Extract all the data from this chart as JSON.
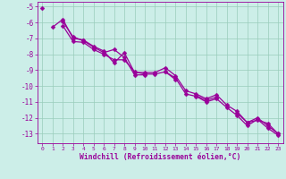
{
  "xlabel": "Windchill (Refroidissement éolien,°C)",
  "bg_color": "#cceee8",
  "line_color": "#990099",
  "grid_color": "#99ccbb",
  "xlim": [
    -0.5,
    23.5
  ],
  "ylim": [
    -13.6,
    -4.7
  ],
  "yticks": [
    -5,
    -6,
    -7,
    -8,
    -9,
    -10,
    -11,
    -12,
    -13
  ],
  "xticks": [
    0,
    1,
    2,
    3,
    4,
    5,
    6,
    7,
    8,
    9,
    10,
    11,
    12,
    13,
    14,
    15,
    16,
    17,
    18,
    19,
    20,
    21,
    22,
    23
  ],
  "series": [
    [
      -5.1,
      null,
      -5.95,
      -6.9,
      -7.15,
      -7.55,
      -7.9,
      -7.7,
      -8.2,
      -9.3,
      -9.3,
      null,
      -9.1,
      -9.6,
      null,
      -10.6,
      -10.9,
      -10.7,
      null,
      -11.7,
      -12.3,
      -12.0,
      -12.5,
      -13.0
    ],
    [
      null,
      -6.3,
      -5.8,
      -7.0,
      -7.1,
      -7.5,
      -7.8,
      -8.55,
      -7.9,
      -9.15,
      -9.15,
      -9.15,
      -8.85,
      -9.35,
      -10.3,
      -10.5,
      -10.8,
      -10.55,
      -11.2,
      -11.6,
      -12.3,
      -12.15,
      -12.35,
      -13.0
    ],
    [
      null,
      null,
      -6.2,
      -7.2,
      -7.25,
      -7.7,
      -8.0,
      -8.35,
      -8.35,
      -9.1,
      -9.25,
      -9.25,
      -9.1,
      -9.5,
      -10.5,
      -10.65,
      -11.0,
      -10.8,
      -11.35,
      -11.85,
      -12.5,
      -12.1,
      -12.65,
      -13.1
    ]
  ]
}
